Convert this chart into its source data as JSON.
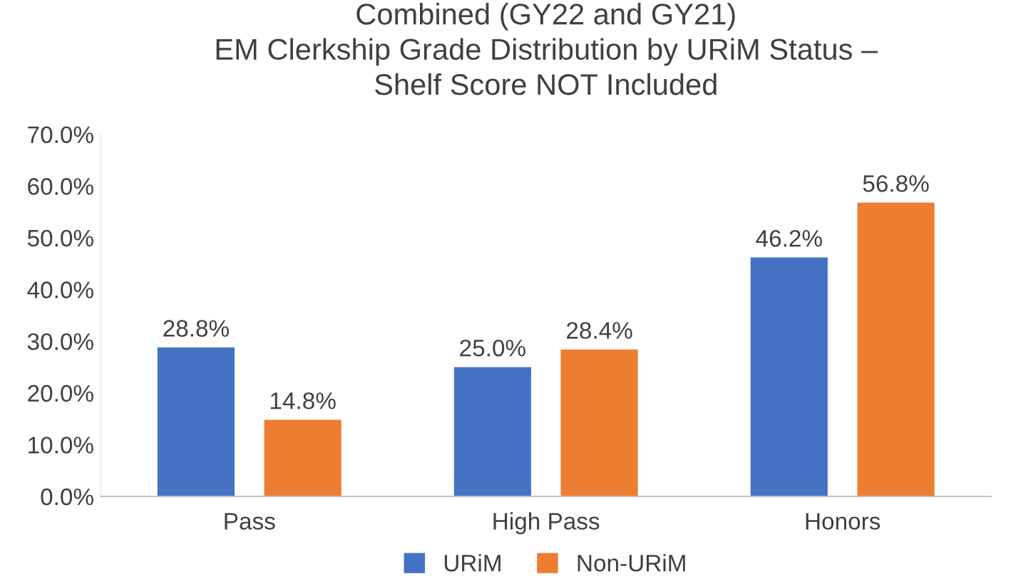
{
  "chart_data": {
    "type": "bar",
    "title": "Combined (GY22 and GY21)\nEM Clerkship Grade Distribution by URiM Status –\nShelf Score NOT Included",
    "categories": [
      "Pass",
      "High Pass",
      "Honors"
    ],
    "series": [
      {
        "name": "URiM",
        "color": "#4472c4",
        "values": [
          28.8,
          25.0,
          46.2
        ],
        "value_labels": [
          "28.8%",
          "25.0%",
          "46.2%"
        ]
      },
      {
        "name": "Non-URiM",
        "color": "#ed7d31",
        "values": [
          14.8,
          28.4,
          56.8
        ],
        "value_labels": [
          "14.8%",
          "28.4%",
          "56.8%"
        ]
      }
    ],
    "ylim": [
      0,
      70
    ],
    "yticks": [
      {
        "value": 0,
        "label": "0.0%"
      },
      {
        "value": 10,
        "label": "10.0%"
      },
      {
        "value": 20,
        "label": "20.0%"
      },
      {
        "value": 30,
        "label": "30.0%"
      },
      {
        "value": 40,
        "label": "40.0%"
      },
      {
        "value": 50,
        "label": "50.0%"
      },
      {
        "value": 60,
        "label": "60.0%"
      },
      {
        "value": 70,
        "label": "70.0%"
      }
    ],
    "legend": "bottom"
  }
}
